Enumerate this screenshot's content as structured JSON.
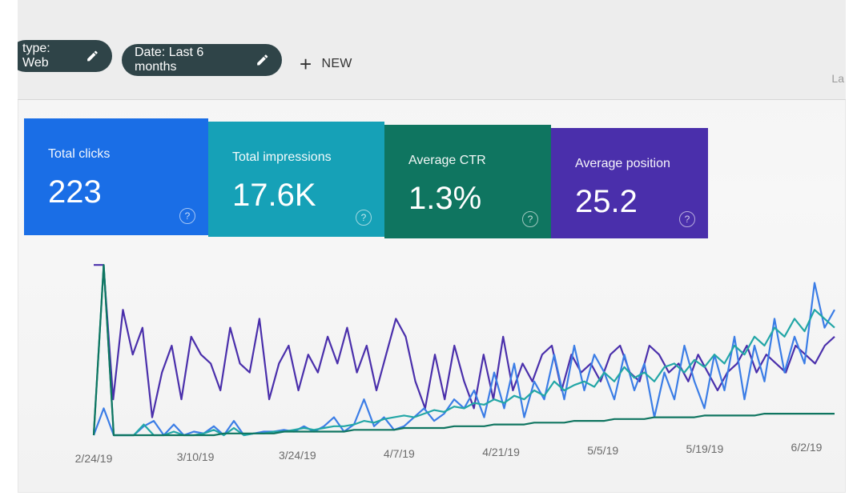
{
  "filters": {
    "type_chip": "type: Web",
    "date_chip": "Date: Last 6 months",
    "new_label": "NEW",
    "edge_text": "La"
  },
  "cards": [
    {
      "label": "Total clicks",
      "value": "223",
      "color": "#1a6ee6"
    },
    {
      "label": "Total impressions",
      "value": "17.6K",
      "color": "#16a1b7"
    },
    {
      "label": "Average CTR",
      "value": "1.3%",
      "color": "#0f7560"
    },
    {
      "label": "Average position",
      "value": "25.2",
      "color": "#4a2fab"
    }
  ],
  "chart_data": {
    "type": "line",
    "x_ticks": [
      "2/24/19",
      "3/10/19",
      "3/24/19",
      "4/7/19",
      "4/21/19",
      "5/5/19",
      "5/19/19",
      "6/2/19"
    ],
    "series": [
      {
        "color": "#4a2fab",
        "values": [
          0.95,
          0.95,
          0.2,
          0.7,
          0.45,
          0.6,
          0.1,
          0.35,
          0.5,
          0.2,
          0.55,
          0.45,
          0.4,
          0.25,
          0.6,
          0.4,
          0.35,
          0.65,
          0.2,
          0.4,
          0.5,
          0.25,
          0.45,
          0.35,
          0.55,
          0.4,
          0.6,
          0.35,
          0.5,
          0.25,
          0.45,
          0.65,
          0.55,
          0.3,
          0.15,
          0.45,
          0.2,
          0.5,
          0.3,
          0.15,
          0.45,
          0.2,
          0.55,
          0.25,
          0.4,
          0.3,
          0.45,
          0.5,
          0.25,
          0.45,
          0.35,
          0.4,
          0.3,
          0.45,
          0.5,
          0.35,
          0.3,
          0.5,
          0.45,
          0.35,
          0.4,
          0.3,
          0.45,
          0.35,
          0.25,
          0.35,
          0.4,
          0.5,
          0.35,
          0.45,
          0.4,
          0.35,
          0.5,
          0.45,
          0.4,
          0.5,
          0.55
        ]
      },
      {
        "color": "#3b7de6",
        "values": [
          0.0,
          0.15,
          0.0,
          0.0,
          0.0,
          0.05,
          0.08,
          0.0,
          0.06,
          0.0,
          0.02,
          0.01,
          0.05,
          0.0,
          0.08,
          0.0,
          0.01,
          0.02,
          0.02,
          0.03,
          0.02,
          0.05,
          0.02,
          0.05,
          0.1,
          0.02,
          0.06,
          0.2,
          0.05,
          0.1,
          0.03,
          0.05,
          0.1,
          0.15,
          0.08,
          0.12,
          0.2,
          0.15,
          0.25,
          0.1,
          0.35,
          0.15,
          0.4,
          0.1,
          0.3,
          0.2,
          0.45,
          0.2,
          0.5,
          0.25,
          0.45,
          0.35,
          0.2,
          0.45,
          0.25,
          0.4,
          0.1,
          0.35,
          0.2,
          0.5,
          0.3,
          0.15,
          0.45,
          0.25,
          0.55,
          0.2,
          0.5,
          0.3,
          0.65,
          0.35,
          0.55,
          0.4,
          0.85,
          0.6,
          0.7
        ]
      },
      {
        "color": "#22a6a6",
        "values": [
          0.0,
          0.95,
          0.0,
          0.0,
          0.0,
          0.06,
          0.0,
          0.0,
          0.02,
          0.0,
          0.0,
          0.01,
          0.03,
          0.0,
          0.04,
          0.0,
          0.01,
          0.01,
          0.02,
          0.02,
          0.03,
          0.04,
          0.03,
          0.04,
          0.05,
          0.05,
          0.06,
          0.08,
          0.07,
          0.09,
          0.1,
          0.11,
          0.1,
          0.12,
          0.14,
          0.13,
          0.16,
          0.15,
          0.18,
          0.17,
          0.2,
          0.18,
          0.22,
          0.2,
          0.25,
          0.22,
          0.3,
          0.25,
          0.28,
          0.3,
          0.27,
          0.35,
          0.3,
          0.38,
          0.32,
          0.35,
          0.3,
          0.38,
          0.4,
          0.35,
          0.42,
          0.38,
          0.45,
          0.4,
          0.5,
          0.45,
          0.55,
          0.5,
          0.6,
          0.55,
          0.65,
          0.58,
          0.7,
          0.65,
          0.6
        ]
      },
      {
        "color": "#0f7560",
        "values": [
          0.0,
          0.95,
          0.0,
          0.0,
          0.0,
          0.0,
          0.0,
          0.0,
          0.0,
          0.0,
          0.0,
          0.0,
          0.0,
          0.01,
          0.01,
          0.01,
          0.01,
          0.01,
          0.01,
          0.02,
          0.02,
          0.02,
          0.02,
          0.02,
          0.02,
          0.02,
          0.03,
          0.03,
          0.03,
          0.03,
          0.03,
          0.04,
          0.04,
          0.04,
          0.04,
          0.04,
          0.05,
          0.05,
          0.05,
          0.05,
          0.06,
          0.06,
          0.06,
          0.06,
          0.07,
          0.07,
          0.07,
          0.07,
          0.08,
          0.08,
          0.08,
          0.08,
          0.09,
          0.09,
          0.09,
          0.09,
          0.1,
          0.1,
          0.1,
          0.1,
          0.1,
          0.11,
          0.11,
          0.11,
          0.11,
          0.11,
          0.11,
          0.12,
          0.12,
          0.12,
          0.12,
          0.12,
          0.12,
          0.12,
          0.12
        ]
      }
    ]
  }
}
